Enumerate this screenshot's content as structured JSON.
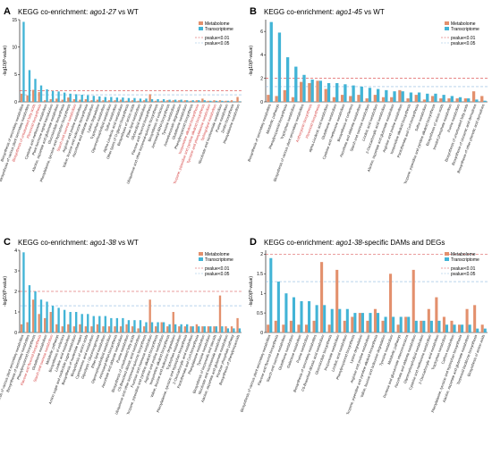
{
  "colors": {
    "metabolome": "#e3906d",
    "transcriptome": "#42b4d6",
    "pvalue_001": "#d63c3c",
    "pvalue_005": "#8fb9df",
    "highlight_label": "#d43c3c",
    "default_label": "#222222"
  },
  "legend": {
    "metabolome": "Metabolome",
    "transcriptome": "Transcriptome",
    "p001": "pvalue<0.01",
    "p005": "pvalue<0.05"
  },
  "chart_data": [
    {
      "type": "bar",
      "letter": "A",
      "title_prefix": "KEGG co-enrichment: ",
      "title_italic": "ago1-27",
      "title_suffix": " vs WT",
      "ylabel": "-log10(P-value)",
      "ylim": [
        0,
        15
      ],
      "yticks": [
        0,
        5,
        10,
        15
      ],
      "thresholds": [
        2,
        1.3
      ],
      "categories": [
        "Biosynthesis of secondary metabolites",
        "Biosynthesis of various plant secondary metabolites",
        "Biosynthesis of unsaturated fatty acids",
        "Flavonoid biosynthesis",
        "Cysteine and methionine metabolism",
        "Plant hormone signal transduction",
        "Alanine, aspartate and glutamate metabolism",
        "Glucosinolate biosynthesis",
        "Phenylalanine, tyrosine and tryptophan biosynthesis",
        "Starch and sucrose metabolism",
        "Arginine and proline metabolism",
        "Valine, leucine and isoleucine biosynthesis",
        "Ascorbate and aldarate metabolism",
        "Lysine degradation",
        "Tryptophan metabolism",
        "Glycerophospholipid metabolism",
        "Sulfur metabolism",
        "Alpha-Linolenic acid metabolism",
        "Other types of O-glycan biosynthesis",
        "Biosynthesis of amino acids",
        "Ether lipid metabolism",
        "Glycerolipid metabolism",
        "Flavone and flavonol biosynthesis",
        "Ubiquinone and other terpenoid-quinone biosynthesis",
        "Biosynthesis of cofactors",
        "Aminoacyl-tRNA biosynthesis",
        "Tyrosine metabolism",
        "Aminobenzoate degradation",
        "Glutathione metabolism",
        "Phenylpropanoid biosynthesis",
        "Isoquinoline alkaloid biosynthesis",
        "Tropane, piperidine and pyridine alkaloid biosynthesis",
        "Tyrosine and phenylalanine metabolism",
        "Sphingolipid metabolism",
        "Nicotinate and nicotinamide metabolism",
        "Purine metabolism",
        "Zeatin biosynthesis",
        "Phenylalanine metabolism"
      ],
      "highlight": [
        2,
        3,
        9,
        30,
        31,
        32,
        33
      ],
      "series": [
        {
          "name": "Metabolome",
          "values": [
            1.5,
            1.2,
            2.2,
            1.8,
            0.3,
            0.5,
            0.6,
            0.4,
            0.8,
            0.5,
            0.4,
            0.5,
            0.3,
            0.4,
            0.3,
            0.3,
            0.3,
            0.4,
            0.2,
            0.3,
            0.2,
            0.3,
            1.4,
            0.2,
            0.2,
            0.3,
            0.3,
            0.3,
            0.3,
            0.2,
            0.3,
            0.6,
            0.2,
            0.3,
            0.3,
            0.2,
            0.3,
            0.9
          ]
        },
        {
          "name": "Transcriptome",
          "values": [
            14.6,
            5.8,
            4.2,
            3.0,
            2.3,
            2.0,
            1.9,
            1.7,
            1.5,
            1.4,
            1.3,
            1.2,
            1.1,
            1.0,
            0.9,
            0.9,
            0.8,
            0.8,
            0.7,
            0.7,
            0.6,
            0.6,
            0.5,
            0.5,
            0.5,
            0.4,
            0.4,
            0.4,
            0.3,
            0.3,
            0.3,
            0.3,
            0.2,
            0.2,
            0.2,
            0.2,
            0.1,
            0.1
          ]
        }
      ]
    },
    {
      "type": "bar",
      "letter": "B",
      "title_prefix": "KEGG co-enrichment: ",
      "title_italic": "ago1-45",
      "title_suffix": " vs WT",
      "ylabel": "-log10(P-value)",
      "ylim": [
        0,
        7
      ],
      "yticks": [
        0,
        2,
        4,
        6
      ],
      "thresholds": [
        2,
        1.3
      ],
      "categories": [
        "Biosynthesis of secondary metabolites",
        "Metabolic pathways",
        "Phenylpropanoid biosynthesis",
        "Tryptophan metabolism",
        "Biosynthesis of various plant secondary metabolites",
        "Anthocyanin biosynthesis",
        "Flavonoid biosynthesis",
        "alpha-Linolenic acid metabolism",
        "Glutathione metabolism",
        "Cysteine and methionine metabolism",
        "Biosynthesis of cofactors",
        "Ascorbate and aldarate metabolism",
        "Starch and sucrose metabolism",
        "Linoleic acid metabolism",
        "2-Oxocarboxylic acid metabolism",
        "Alanine, aspartate and glutamate metabolism",
        "Arginine and proline metabolism",
        "Isoquinoline alkaloid biosynthesis",
        "Pantothenate and CoA biosynthesis",
        "Sulfur metabolism",
        "Tropane, piperidine and pyridine alkaloid biosynthesis",
        "Biosynthesis of amino acids",
        "Inositol phosphate metabolism",
        "Purine metabolism",
        "Biosynthesis of unsaturated fatty acids",
        "Biosynthesis of cinnamic acid derivatives",
        "Biosynthesis of other phenolic acid derivatives"
      ],
      "highlight": [
        5,
        6
      ],
      "series": [
        {
          "name": "Metabolome",
          "values": [
            0.6,
            0.5,
            1.0,
            0.4,
            1.7,
            1.6,
            1.8,
            1.1,
            0.4,
            0.6,
            0.5,
            0.6,
            0.3,
            0.6,
            0.4,
            0.4,
            1.0,
            0.3,
            0.6,
            0.2,
            0.5,
            0.3,
            0.3,
            0.3,
            0.3,
            0.9,
            0.5
          ]
        },
        {
          "name": "Transcriptome",
          "values": [
            6.8,
            5.9,
            3.8,
            3.0,
            2.3,
            1.9,
            1.8,
            1.6,
            1.6,
            1.5,
            1.4,
            1.3,
            1.2,
            1.1,
            1.0,
            0.9,
            0.9,
            0.8,
            0.8,
            0.7,
            0.7,
            0.6,
            0.5,
            0.4,
            0.3,
            0.2,
            0.1
          ]
        }
      ]
    },
    {
      "type": "bar",
      "letter": "C",
      "title_prefix": "KEGG co-enrichment: ",
      "title_italic": "ago1-38",
      "title_suffix": " vs WT",
      "ylabel": "-log10(P-value)",
      "ylim": [
        0,
        4
      ],
      "yticks": [
        0,
        1,
        2,
        3,
        4
      ],
      "thresholds": [
        2,
        1.3
      ],
      "categories": [
        "Biosynthesis of various plant secondary metabolites",
        "Biosynthesis of secondary metabolites",
        "Phenylpropanoid biosynthesis",
        "Flavone and flavonol biosynthesis",
        "Glutathione metabolism",
        "Starch and sucrose metabolism",
        "Metabolic pathways",
        "Biosynthesis of cofactors",
        "Linoleic acid metabolism",
        "Amino sugar and nucleotide sugar metabolism",
        "Biosynthesis of nucleotide sugars",
        "Biosynthesis of amino acids",
        "Cyanoamino acid metabolism",
        "Glycolysis / Gluconeogenesis",
        "Ether lipid metabolism",
        "Glycerophospholipid metabolism",
        "Aminoacyl-tRNA biosynthesis",
        "Ascorbate and aldarate metabolism",
        "Purine metabolism",
        "Biosynthesis of unsaturated fatty acids",
        "C5-Branched dibasic acid metabolism",
        "Ubiquinone and other terpenoid-quinone biosynthesis",
        "Fructose and mannose metabolism",
        "Tropane, piperidine and pyridine alkaloid biosynthesis",
        "Arginine and proline metabolism",
        "Isoquinoline alkaloid biosynthesis",
        "Valine, leucine and isoleucine degradation",
        "Tryptophan metabolism",
        "Phenylalanine, tyrosine and tryptophan biosynthesis",
        "2-Oxocarboxylic acid metabolism",
        "Pantothenate and CoA biosynthesis",
        "Phenylalanine metabolism",
        "Tyrosine metabolism",
        "Biosynthesis of terpenoids and steroids",
        "Nicotinate and nicotinamide metabolism",
        "Alanine, aspartate and glutamate metabolism",
        "Pentose phosphate pathway",
        "Biosynthesis of phenylpropanoids"
      ],
      "highlight": [
        3,
        5
      ],
      "series": [
        {
          "name": "Metabolome",
          "values": [
            0.4,
            0.5,
            1.6,
            0.9,
            0.7,
            1.0,
            0.4,
            0.3,
            0.4,
            0.3,
            0.4,
            0.3,
            0.3,
            0.4,
            0.3,
            0.3,
            0.3,
            0.3,
            0.4,
            0.3,
            0.2,
            0.3,
            1.6,
            0.3,
            0.5,
            0.3,
            1.0,
            0.3,
            0.3,
            0.3,
            0.4,
            0.3,
            0.3,
            0.3,
            1.8,
            0.3,
            0.3,
            0.7
          ]
        },
        {
          "name": "Transcriptome",
          "values": [
            3.9,
            2.3,
            2.0,
            1.6,
            1.5,
            1.3,
            1.2,
            1.1,
            1.0,
            1.0,
            0.9,
            0.9,
            0.8,
            0.8,
            0.8,
            0.7,
            0.7,
            0.7,
            0.6,
            0.6,
            0.6,
            0.5,
            0.5,
            0.5,
            0.5,
            0.4,
            0.4,
            0.4,
            0.4,
            0.3,
            0.3,
            0.3,
            0.3,
            0.3,
            0.3,
            0.2,
            0.2,
            0.2
          ]
        }
      ]
    },
    {
      "type": "bar",
      "letter": "D",
      "title_prefix": "KEGG co-enrichment: ",
      "title_italic": "ago1-38",
      "title_suffix": "-specific DAMs and DEGs",
      "ylabel": "-log10(P-value)",
      "ylim": [
        0,
        2.1
      ],
      "yticks": [
        0,
        0.5,
        1,
        1.5,
        2
      ],
      "thresholds": [
        2,
        1.3
      ],
      "categories": [
        "Biosynthesis of various plant secondary metabolites",
        "Flavone and flavonol biosynthesis",
        "Starch and sucrose metabolism",
        "Glutathione metabolism",
        "Galactose metabolism",
        "Purine metabolism",
        "Biosynthesis of secondary metabolites",
        "C5-Branched dibasic acid metabolism",
        "Glucosinolate biosynthesis",
        "Propanoate metabolism",
        "Linoleic acid metabolism",
        "Phenylpropanoid biosynthesis",
        "Lysine degradation",
        "Arginine and proline metabolism",
        "Tropane, piperidine and pyridine alkaloid biosynthesis",
        "Valine, leucine and isoleucine degradation",
        "Tyrosine metabolism",
        "Metabolic pathways",
        "Pentose and glucuronate interconversions",
        "Ascorbate and aldarate metabolism",
        "Glycerophospholipid metabolism",
        "Cysteine and methionine metabolism",
        "2-Oxocarboxylic acid metabolism",
        "Tryptophan metabolism",
        "Carbon metabolism",
        "Phenylalanine, tyrosine and tryptophan biosynthesis",
        "Alanine, aspartate and glutamate metabolism",
        "Terpenoid backbone biosynthesis",
        "Biosynthesis of amino acids"
      ],
      "highlight": [],
      "series": [
        {
          "name": "Metabolome",
          "values": [
            0.2,
            0.3,
            0.2,
            0.3,
            0.2,
            0.2,
            0.3,
            1.8,
            0.2,
            1.6,
            0.3,
            0.4,
            0.5,
            0.3,
            0.6,
            0.3,
            1.5,
            0.2,
            0.4,
            1.6,
            0.3,
            0.6,
            0.9,
            0.4,
            0.3,
            0.2,
            0.6,
            0.7,
            0.2
          ]
        },
        {
          "name": "Transcriptome",
          "values": [
            1.9,
            1.3,
            1.0,
            0.9,
            0.8,
            0.8,
            0.7,
            0.7,
            0.6,
            0.6,
            0.6,
            0.5,
            0.5,
            0.5,
            0.5,
            0.4,
            0.4,
            0.4,
            0.4,
            0.3,
            0.3,
            0.3,
            0.3,
            0.2,
            0.2,
            0.2,
            0.2,
            0.1,
            0.1
          ]
        }
      ]
    }
  ]
}
